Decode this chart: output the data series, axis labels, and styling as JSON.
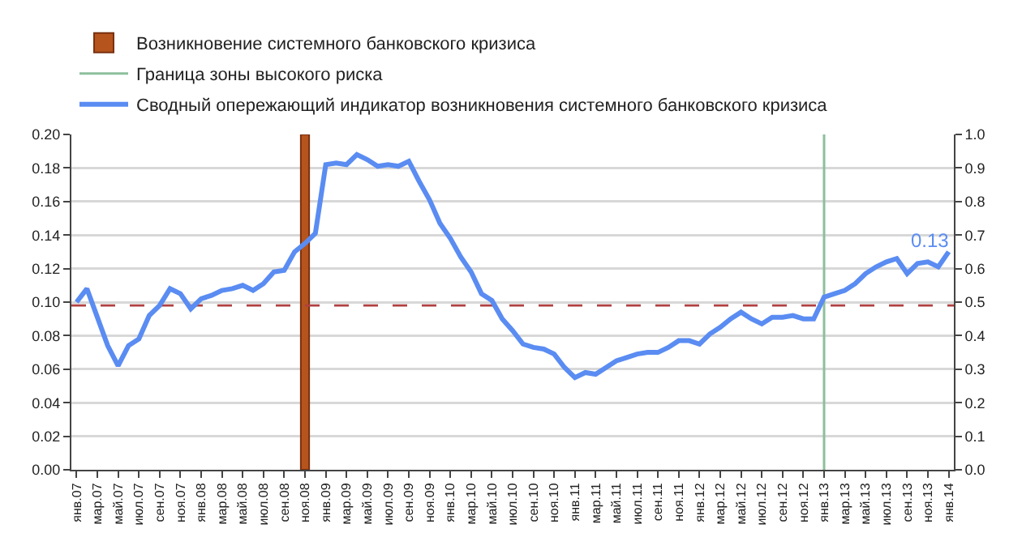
{
  "chart_data": {
    "type": "line",
    "categories": [
      "янв.07",
      null,
      "мар.07",
      null,
      "май.07",
      null,
      "июл.07",
      null,
      "сен.07",
      null,
      "ноя.07",
      null,
      "янв.08",
      null,
      "мар.08",
      null,
      "май.08",
      null,
      "июл.08",
      null,
      "сен.08",
      null,
      "ноя.08",
      null,
      "янв.09",
      null,
      "мар.09",
      null,
      "май.09",
      null,
      "июл.09",
      null,
      "сен.09",
      null,
      "ноя.09",
      null,
      "янв.10",
      null,
      "мар.10",
      null,
      "май.10",
      null,
      "июл.10",
      null,
      "сен.10",
      null,
      "ноя.10",
      null,
      "янв.11",
      null,
      "мар.11",
      null,
      "май.11",
      null,
      "июл.11",
      null,
      "сен.11",
      null,
      "ноя.11",
      null,
      "янв.12",
      null,
      "мар.12",
      null,
      "май.12",
      null,
      "июл.12",
      null,
      "сен.12",
      null,
      "ноя.12",
      null,
      "янв.13",
      null,
      "мар.13",
      null,
      "май.13",
      null,
      "июл.13",
      null,
      "сен.13",
      null,
      "ноя.13",
      null,
      "янв.14"
    ],
    "series": [
      {
        "name": "Сводный опережающий индикатор возникновения системного банковского кризиса",
        "color": "#5a8cf2",
        "values": [
          0.1,
          0.108,
          0.091,
          0.074,
          0.062,
          0.074,
          0.078,
          0.092,
          0.098,
          0.108,
          0.105,
          0.096,
          0.102,
          0.104,
          0.107,
          0.108,
          0.11,
          0.107,
          0.111,
          0.118,
          0.119,
          0.13,
          0.135,
          0.141,
          0.182,
          0.183,
          0.182,
          0.188,
          0.185,
          0.181,
          0.182,
          0.181,
          0.184,
          0.172,
          0.161,
          0.147,
          0.138,
          0.127,
          0.118,
          0.105,
          0.101,
          0.09,
          0.083,
          0.075,
          0.073,
          0.072,
          0.069,
          0.061,
          0.055,
          0.058,
          0.057,
          0.061,
          0.065,
          0.067,
          0.069,
          0.07,
          0.07,
          0.073,
          0.077,
          0.077,
          0.075,
          0.081,
          0.085,
          0.09,
          0.094,
          0.09,
          0.087,
          0.091,
          0.091,
          0.092,
          0.09,
          0.09,
          0.103,
          0.105,
          0.107,
          0.111,
          0.117,
          0.121,
          0.124,
          0.126,
          0.117,
          0.123,
          0.124,
          0.121,
          0.13
        ],
        "value_labels": [
          null,
          null,
          null,
          null,
          null,
          null,
          null,
          null,
          null,
          null,
          null,
          null,
          null,
          null,
          null,
          null,
          null,
          null,
          null,
          null,
          null,
          null,
          null,
          null,
          null,
          null,
          null,
          null,
          null,
          null,
          null,
          null,
          null,
          null,
          null,
          null,
          null,
          null,
          null,
          null,
          null,
          null,
          null,
          null,
          null,
          null,
          null,
          null,
          null,
          null,
          null,
          null,
          null,
          null,
          null,
          null,
          null,
          null,
          null,
          null,
          null,
          null,
          null,
          null,
          null,
          null,
          null,
          null,
          null,
          null,
          null,
          null,
          null,
          null,
          null,
          null,
          null,
          null,
          null,
          null,
          null,
          null,
          null,
          null,
          "0.13"
        ]
      }
    ],
    "ylim": [
      0,
      0.2
    ],
    "yticks": [
      {
        "value": 0,
        "label": "0.00"
      },
      {
        "value": 0.02,
        "label": "0.02"
      },
      {
        "value": 0.04,
        "label": "0.04"
      },
      {
        "value": 0.06,
        "label": "0.06"
      },
      {
        "value": 0.08,
        "label": "0.08"
      },
      {
        "value": 0.1,
        "label": "0.10"
      },
      {
        "value": 0.12,
        "label": "0.12"
      },
      {
        "value": 0.14,
        "label": "0.14"
      },
      {
        "value": 0.16,
        "label": "0.16"
      },
      {
        "value": 0.18,
        "label": "0.18"
      },
      {
        "value": 0.2,
        "label": "0.20"
      }
    ],
    "y2lim": [
      0,
      1
    ],
    "y2ticks": [
      {
        "value": 0,
        "label": "0.0"
      },
      0.1,
      0.2,
      0.3,
      0.4,
      0.5,
      0.6,
      0.7,
      0.8,
      0.9,
      {
        "value": 1,
        "label": "1.0"
      }
    ],
    "bands": [
      {
        "axis": "x",
        "from": "ноя.08",
        "to": "ноя.08",
        "label": "Возникновение системного банковского кризиса",
        "color": "#b5541c"
      }
    ],
    "ref_lines": [
      {
        "axis": "x",
        "value": "янв.13",
        "label": "Граница зоны высокого риска",
        "color": "#8cbf9c"
      },
      {
        "axis": "y",
        "value": 0.098,
        "color": "#b04040",
        "line_style": "dashed"
      }
    ],
    "grid": "y",
    "legend": "top left",
    "marker": "none",
    "line_style": "solid"
  }
}
